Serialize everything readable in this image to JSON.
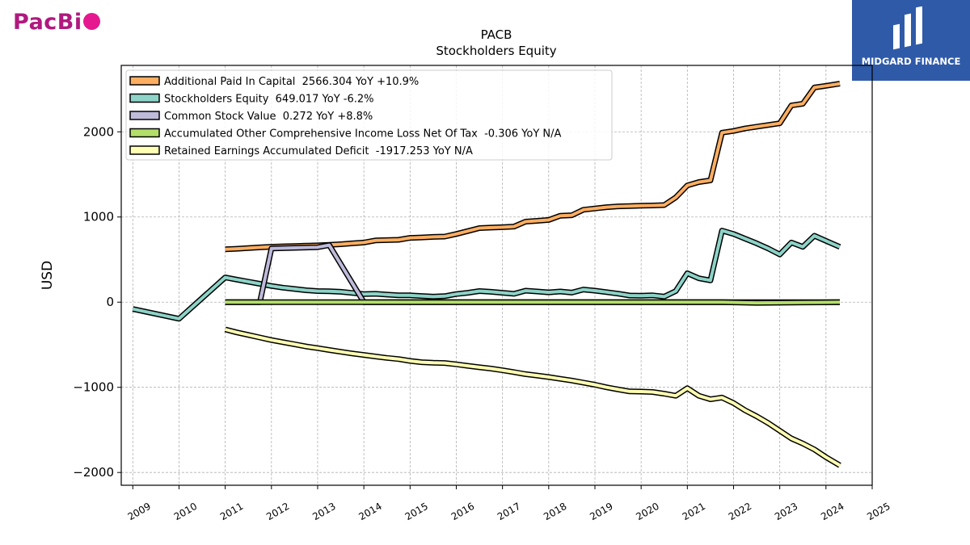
{
  "logos": {
    "left_text": "PacBi",
    "right_text": "MIDGARD FINANCE"
  },
  "chart_data": {
    "type": "line",
    "title": "PACB",
    "subtitle": "Stockholders  Equity",
    "xlabel": "",
    "ylabel": "USD",
    "xlim": [
      2008.75,
      2025
    ],
    "ylim": [
      -2150,
      2780
    ],
    "x_ticks": [
      "2009",
      "2010",
      "2011",
      "2012",
      "2013",
      "2014",
      "2015",
      "2016",
      "2017",
      "2018",
      "2019",
      "2020",
      "2021",
      "2022",
      "2023",
      "2024",
      "2025"
    ],
    "y_ticks": [
      -2000,
      -1000,
      0,
      1000,
      2000
    ],
    "y_tick_labels": [
      "−2000",
      "−1000",
      "0",
      "1000",
      "2000"
    ],
    "grid": true,
    "legend_position": "top-left",
    "series": [
      {
        "name": "Additional Paid In Capital  2566.304 YoY +10.9%",
        "color": "#fdae61",
        "points": [
          [
            2011.0,
            620
          ],
          [
            2011.25,
            627
          ],
          [
            2011.5,
            635
          ],
          [
            2011.75,
            643
          ],
          [
            2012.0,
            651
          ],
          [
            2012.25,
            655
          ],
          [
            2012.5,
            659
          ],
          [
            2012.75,
            663
          ],
          [
            2013.0,
            667
          ],
          [
            2013.25,
            672
          ],
          [
            2013.5,
            680
          ],
          [
            2013.75,
            690
          ],
          [
            2014.0,
            700
          ],
          [
            2014.25,
            725
          ],
          [
            2014.5,
            728
          ],
          [
            2014.75,
            732
          ],
          [
            2015.0,
            755
          ],
          [
            2015.25,
            760
          ],
          [
            2015.5,
            766
          ],
          [
            2015.75,
            770
          ],
          [
            2016.0,
            800
          ],
          [
            2016.25,
            835
          ],
          [
            2016.5,
            870
          ],
          [
            2016.75,
            875
          ],
          [
            2017.0,
            880
          ],
          [
            2017.25,
            888
          ],
          [
            2017.5,
            945
          ],
          [
            2017.75,
            955
          ],
          [
            2018.0,
            965
          ],
          [
            2018.25,
            1015
          ],
          [
            2018.5,
            1020
          ],
          [
            2018.75,
            1085
          ],
          [
            2019.0,
            1100
          ],
          [
            2019.25,
            1115
          ],
          [
            2019.5,
            1125
          ],
          [
            2019.75,
            1128
          ],
          [
            2020.0,
            1132
          ],
          [
            2020.25,
            1135
          ],
          [
            2020.5,
            1140
          ],
          [
            2020.75,
            1230
          ],
          [
            2021.0,
            1370
          ],
          [
            2021.25,
            1410
          ],
          [
            2021.5,
            1430
          ],
          [
            2021.75,
            1990
          ],
          [
            2022.0,
            2010
          ],
          [
            2022.25,
            2040
          ],
          [
            2022.5,
            2060
          ],
          [
            2022.75,
            2080
          ],
          [
            2023.0,
            2100
          ],
          [
            2023.25,
            2310
          ],
          [
            2023.5,
            2330
          ],
          [
            2023.75,
            2520
          ],
          [
            2024.0,
            2540
          ],
          [
            2024.3,
            2566
          ]
        ]
      },
      {
        "name": "Stockholders Equity  649.017 YoY -6.2%",
        "color": "#8dd3c7",
        "points": [
          [
            2009.0,
            -80
          ],
          [
            2010.0,
            -195
          ],
          [
            2011.0,
            290
          ],
          [
            2011.25,
            265
          ],
          [
            2011.5,
            240
          ],
          [
            2011.75,
            215
          ],
          [
            2012.0,
            190
          ],
          [
            2012.25,
            170
          ],
          [
            2012.5,
            155
          ],
          [
            2012.75,
            140
          ],
          [
            2013.0,
            130
          ],
          [
            2013.25,
            128
          ],
          [
            2013.5,
            122
          ],
          [
            2013.75,
            108
          ],
          [
            2014.0,
            95
          ],
          [
            2014.25,
            98
          ],
          [
            2014.5,
            88
          ],
          [
            2014.75,
            80
          ],
          [
            2015.0,
            80
          ],
          [
            2015.25,
            72
          ],
          [
            2015.5,
            65
          ],
          [
            2015.75,
            70
          ],
          [
            2016.0,
            95
          ],
          [
            2016.25,
            110
          ],
          [
            2016.5,
            130
          ],
          [
            2016.75,
            122
          ],
          [
            2017.0,
            110
          ],
          [
            2017.25,
            98
          ],
          [
            2017.5,
            135
          ],
          [
            2017.75,
            125
          ],
          [
            2018.0,
            115
          ],
          [
            2018.25,
            125
          ],
          [
            2018.5,
            112
          ],
          [
            2018.75,
            148
          ],
          [
            2019.0,
            135
          ],
          [
            2019.25,
            118
          ],
          [
            2019.5,
            100
          ],
          [
            2019.75,
            78
          ],
          [
            2020.0,
            75
          ],
          [
            2020.25,
            80
          ],
          [
            2020.5,
            65
          ],
          [
            2020.75,
            130
          ],
          [
            2021.0,
            340
          ],
          [
            2021.25,
            280
          ],
          [
            2021.5,
            255
          ],
          [
            2021.75,
            840
          ],
          [
            2022.0,
            800
          ],
          [
            2022.25,
            745
          ],
          [
            2022.5,
            690
          ],
          [
            2022.75,
            630
          ],
          [
            2023.0,
            560
          ],
          [
            2023.25,
            700
          ],
          [
            2023.5,
            650
          ],
          [
            2023.75,
            780
          ],
          [
            2024.0,
            720
          ],
          [
            2024.3,
            649
          ]
        ]
      },
      {
        "name": "Common Stock Value  0.272 YoY +8.8%",
        "color": "#bebada",
        "points": [
          [
            2011.0,
            0
          ],
          [
            2011.75,
            0
          ],
          [
            2012.0,
            630
          ],
          [
            2013.0,
            645
          ],
          [
            2013.25,
            670
          ],
          [
            2014.0,
            0
          ],
          [
            2024.3,
            0.272
          ]
        ]
      },
      {
        "name": "Accumulated Other Comprehensive Income Loss Net Of Tax  -0.306 YoY N/A",
        "color": "#b3de69",
        "points": [
          [
            2011.0,
            0
          ],
          [
            2021.75,
            0
          ],
          [
            2022.5,
            -8
          ],
          [
            2023.0,
            -6
          ],
          [
            2023.5,
            -4
          ],
          [
            2024.3,
            -0.306
          ]
        ]
      },
      {
        "name": "Retained Earnings Accumulated Deficit  -1917.253 YoY N/A",
        "color": "#ffffb3",
        "points": [
          [
            2011.0,
            -320
          ],
          [
            2011.25,
            -355
          ],
          [
            2011.5,
            -385
          ],
          [
            2011.75,
            -415
          ],
          [
            2012.0,
            -445
          ],
          [
            2012.25,
            -470
          ],
          [
            2012.5,
            -495
          ],
          [
            2012.75,
            -520
          ],
          [
            2013.0,
            -540
          ],
          [
            2013.25,
            -562
          ],
          [
            2013.5,
            -583
          ],
          [
            2013.75,
            -603
          ],
          [
            2014.0,
            -620
          ],
          [
            2014.25,
            -638
          ],
          [
            2014.5,
            -655
          ],
          [
            2014.75,
            -668
          ],
          [
            2015.0,
            -690
          ],
          [
            2015.25,
            -705
          ],
          [
            2015.5,
            -712
          ],
          [
            2015.75,
            -715
          ],
          [
            2016.0,
            -730
          ],
          [
            2016.25,
            -748
          ],
          [
            2016.5,
            -765
          ],
          [
            2016.75,
            -780
          ],
          [
            2017.0,
            -800
          ],
          [
            2017.25,
            -822
          ],
          [
            2017.5,
            -845
          ],
          [
            2017.75,
            -862
          ],
          [
            2018.0,
            -880
          ],
          [
            2018.25,
            -900
          ],
          [
            2018.5,
            -920
          ],
          [
            2018.75,
            -945
          ],
          [
            2019.0,
            -970
          ],
          [
            2019.25,
            -1000
          ],
          [
            2019.5,
            -1025
          ],
          [
            2019.75,
            -1048
          ],
          [
            2020.0,
            -1050
          ],
          [
            2020.25,
            -1055
          ],
          [
            2020.5,
            -1075
          ],
          [
            2020.75,
            -1100
          ],
          [
            2021.0,
            -1010
          ],
          [
            2021.25,
            -1100
          ],
          [
            2021.5,
            -1140
          ],
          [
            2021.75,
            -1120
          ],
          [
            2022.0,
            -1185
          ],
          [
            2022.25,
            -1270
          ],
          [
            2022.5,
            -1340
          ],
          [
            2022.75,
            -1420
          ],
          [
            2023.0,
            -1510
          ],
          [
            2023.25,
            -1600
          ],
          [
            2023.5,
            -1660
          ],
          [
            2023.75,
            -1730
          ],
          [
            2024.0,
            -1820
          ],
          [
            2024.3,
            -1917
          ]
        ]
      }
    ]
  }
}
